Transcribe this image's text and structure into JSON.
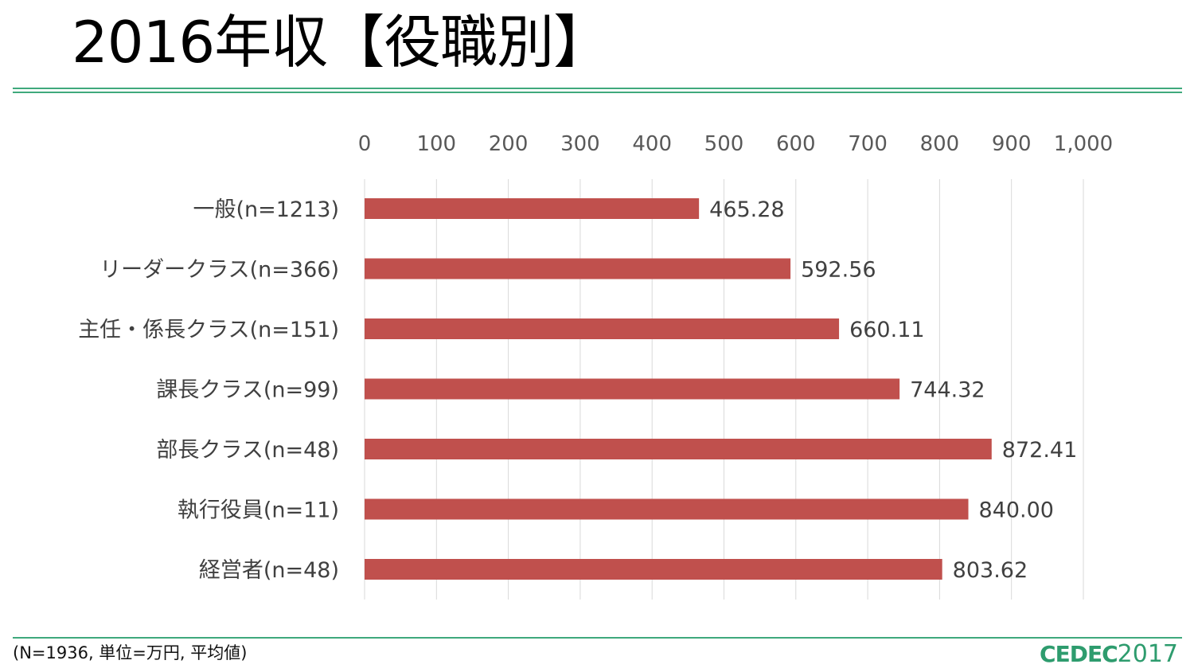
{
  "slide": {
    "title": "2016年収【役職別】",
    "footnote": "(N=1936, 単位=万円, 平均値)"
  },
  "logo": {
    "brand": "CEDEC",
    "year": "2017"
  },
  "colors": {
    "bar": "#c0504d",
    "rule": "#3fa97c",
    "grid": "#d9d9d9",
    "logo": "#2e9c6e"
  },
  "chart_data": {
    "type": "bar",
    "orientation": "horizontal",
    "categories": [
      "一般(n=1213)",
      "リーダークラス(n=366)",
      "主任・係長クラス(n=151)",
      "課長クラス(n=99)",
      "部長クラス(n=48)",
      "執行役員(n=11)",
      "経営者(n=48)"
    ],
    "values": [
      465.28,
      592.56,
      660.11,
      744.32,
      872.41,
      840.0,
      803.62
    ],
    "value_labels": [
      "465.28",
      "592.56",
      "660.11",
      "744.32",
      "872.41",
      "840.00",
      "803.62"
    ],
    "xlim": [
      0,
      1000
    ],
    "ticks": [
      0,
      100,
      200,
      300,
      400,
      500,
      600,
      700,
      800,
      900,
      1000
    ],
    "tick_labels": [
      "0",
      "100",
      "200",
      "300",
      "400",
      "500",
      "600",
      "700",
      "800",
      "900",
      "1,000"
    ],
    "axis_position": "top",
    "grid": true,
    "legend": "none"
  }
}
